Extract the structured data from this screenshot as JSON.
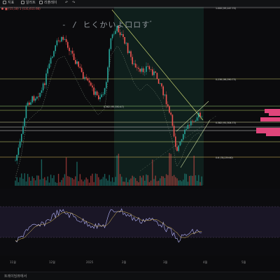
{
  "toolbar": {
    "items": [
      {
        "label": "지표",
        "icon": "indicator-icon"
      },
      {
        "label": "알러트",
        "icon": "alert-icon"
      },
      {
        "label": "리플레이",
        "icon": "replay-icon"
      }
    ]
  },
  "legend": {
    "text": "■ (15,18) 1 (131,611.66)"
  },
  "symbol": {
    "text": "- / ヒくかいよ口ロす ゙"
  },
  "price_labels": {
    "top": "1.000 (93,147.70)",
    "fib_0236": "0.236 (96,590.75)",
    "midline": "0.382 (95,550.47)",
    "fib_0382": "0.382 (91,304.75)",
    "fib_06": "0.6 (78,239.60)",
    "small_a": "#FF",
    "small_b": "0.600"
  },
  "x_axis": [
    "11월",
    "12월",
    "2025",
    "2월",
    "3월",
    "4월",
    "5월"
  ],
  "status": {
    "text": "트레이딩뷰에서"
  },
  "colors": {
    "up": "#26a69a",
    "down": "#ef5350",
    "trend": "#d6e27a",
    "profile": "#e0457b",
    "rsi": "#b8b8ff",
    "rsi_band": "#2a2440"
  }
}
